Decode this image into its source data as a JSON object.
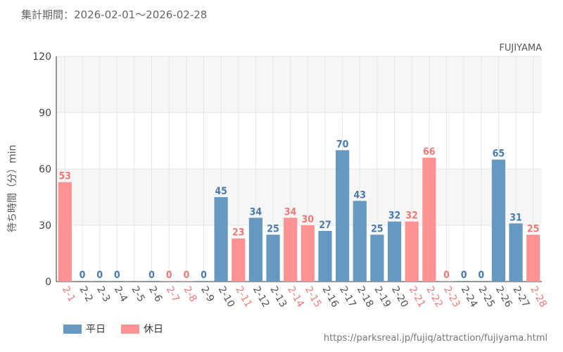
{
  "header": {
    "period": "集計期間：2026-02-01～2026-02-28"
  },
  "chart_data": {
    "type": "bar",
    "title": "FUJIYAMA",
    "ylabel": "待ち時間（分）min",
    "ylim": [
      0,
      120
    ],
    "yticks": [
      0,
      30,
      60,
      90,
      120
    ],
    "categories": [
      "2-1",
      "2-2",
      "2-3",
      "2-4",
      "2-5",
      "2-6",
      "2-7",
      "2-8",
      "2-9",
      "2-10",
      "2-11",
      "2-12",
      "2-13",
      "2-14",
      "2-15",
      "2-16",
      "2-17",
      "2-18",
      "2-19",
      "2-20",
      "2-21",
      "2-22",
      "2-23",
      "2-24",
      "2-25",
      "2-26",
      "2-27",
      "2-28"
    ],
    "values": [
      53,
      0,
      0,
      0,
      null,
      0,
      0,
      0,
      0,
      45,
      23,
      34,
      25,
      34,
      30,
      27,
      70,
      43,
      25,
      32,
      32,
      66,
      0,
      0,
      0,
      65,
      31,
      25
    ],
    "day_type": [
      "holiday",
      "weekday",
      "weekday",
      "weekday",
      "weekday",
      "weekday",
      "holiday",
      "holiday",
      "weekday",
      "weekday",
      "holiday",
      "weekday",
      "weekday",
      "holiday",
      "holiday",
      "weekday",
      "weekday",
      "weekday",
      "weekday",
      "weekday",
      "holiday",
      "holiday",
      "holiday",
      "weekday",
      "weekday",
      "weekday",
      "weekday",
      "holiday"
    ],
    "legend": [
      {
        "key": "weekday",
        "label": "平日",
        "color": "#6699c2"
      },
      {
        "key": "holiday",
        "label": "休日",
        "color": "#ff9393"
      }
    ],
    "colors": {
      "weekday_bar": "#6699c2",
      "holiday_bar": "#ff9393",
      "weekday_text": "#4a7bab",
      "holiday_text": "#f07a7a",
      "tick_text": "#555555"
    }
  },
  "footer": {
    "url": "https://parksreal.jp/fujiq/attraction/fujiyama.html"
  }
}
